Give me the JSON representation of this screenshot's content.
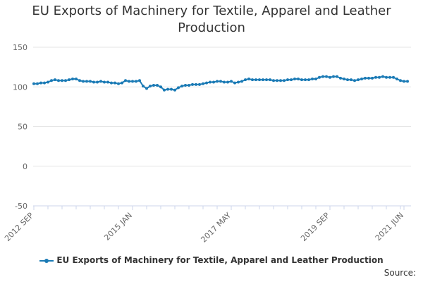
{
  "colors": {
    "series": "#1a7ab5",
    "grid": "#e6e6e6",
    "axis": "#ccd6eb",
    "text": "#666666"
  },
  "source_label": "Source:",
  "chart_data": {
    "type": "line",
    "title": "EU Exports of Machinery for Textile, Apparel and Leather Production",
    "xlabel": "",
    "ylabel": "",
    "ylim": [
      -50,
      150
    ],
    "yticks": [
      -50,
      0,
      50,
      100,
      150
    ],
    "x_tick_labels": [
      {
        "label": "2012 SEP",
        "index": 0
      },
      {
        "label": "2015 JAN",
        "index": 28
      },
      {
        "label": "2017 MAY",
        "index": 56
      },
      {
        "label": "2019 SEP",
        "index": 84
      },
      {
        "label": "2021 JUN",
        "index": 105
      }
    ],
    "legend_position": "bottom",
    "grid": true,
    "series": [
      {
        "name": "EU Exports of Machinery for Textile, Apparel and Leather Production",
        "values": [
          104,
          104,
          105,
          105,
          106,
          108,
          109,
          108,
          108,
          108,
          109,
          110,
          110,
          108,
          107,
          107,
          107,
          106,
          106,
          107,
          106,
          106,
          105,
          105,
          104,
          105,
          108,
          107,
          107,
          107,
          108,
          101,
          98,
          101,
          102,
          102,
          100,
          96,
          97,
          97,
          96,
          99,
          101,
          102,
          102,
          103,
          103,
          103,
          104,
          105,
          106,
          106,
          107,
          107,
          106,
          106,
          107,
          105,
          106,
          107,
          109,
          110,
          109,
          109,
          109,
          109,
          109,
          109,
          108,
          108,
          108,
          108,
          109,
          109,
          110,
          110,
          109,
          109,
          109,
          110,
          110,
          112,
          113,
          113,
          112,
          113,
          113,
          111,
          110,
          109,
          109,
          108,
          109,
          110,
          111,
          111,
          111,
          112,
          112,
          113,
          112,
          112,
          112,
          110,
          108,
          107,
          107
        ]
      }
    ]
  }
}
